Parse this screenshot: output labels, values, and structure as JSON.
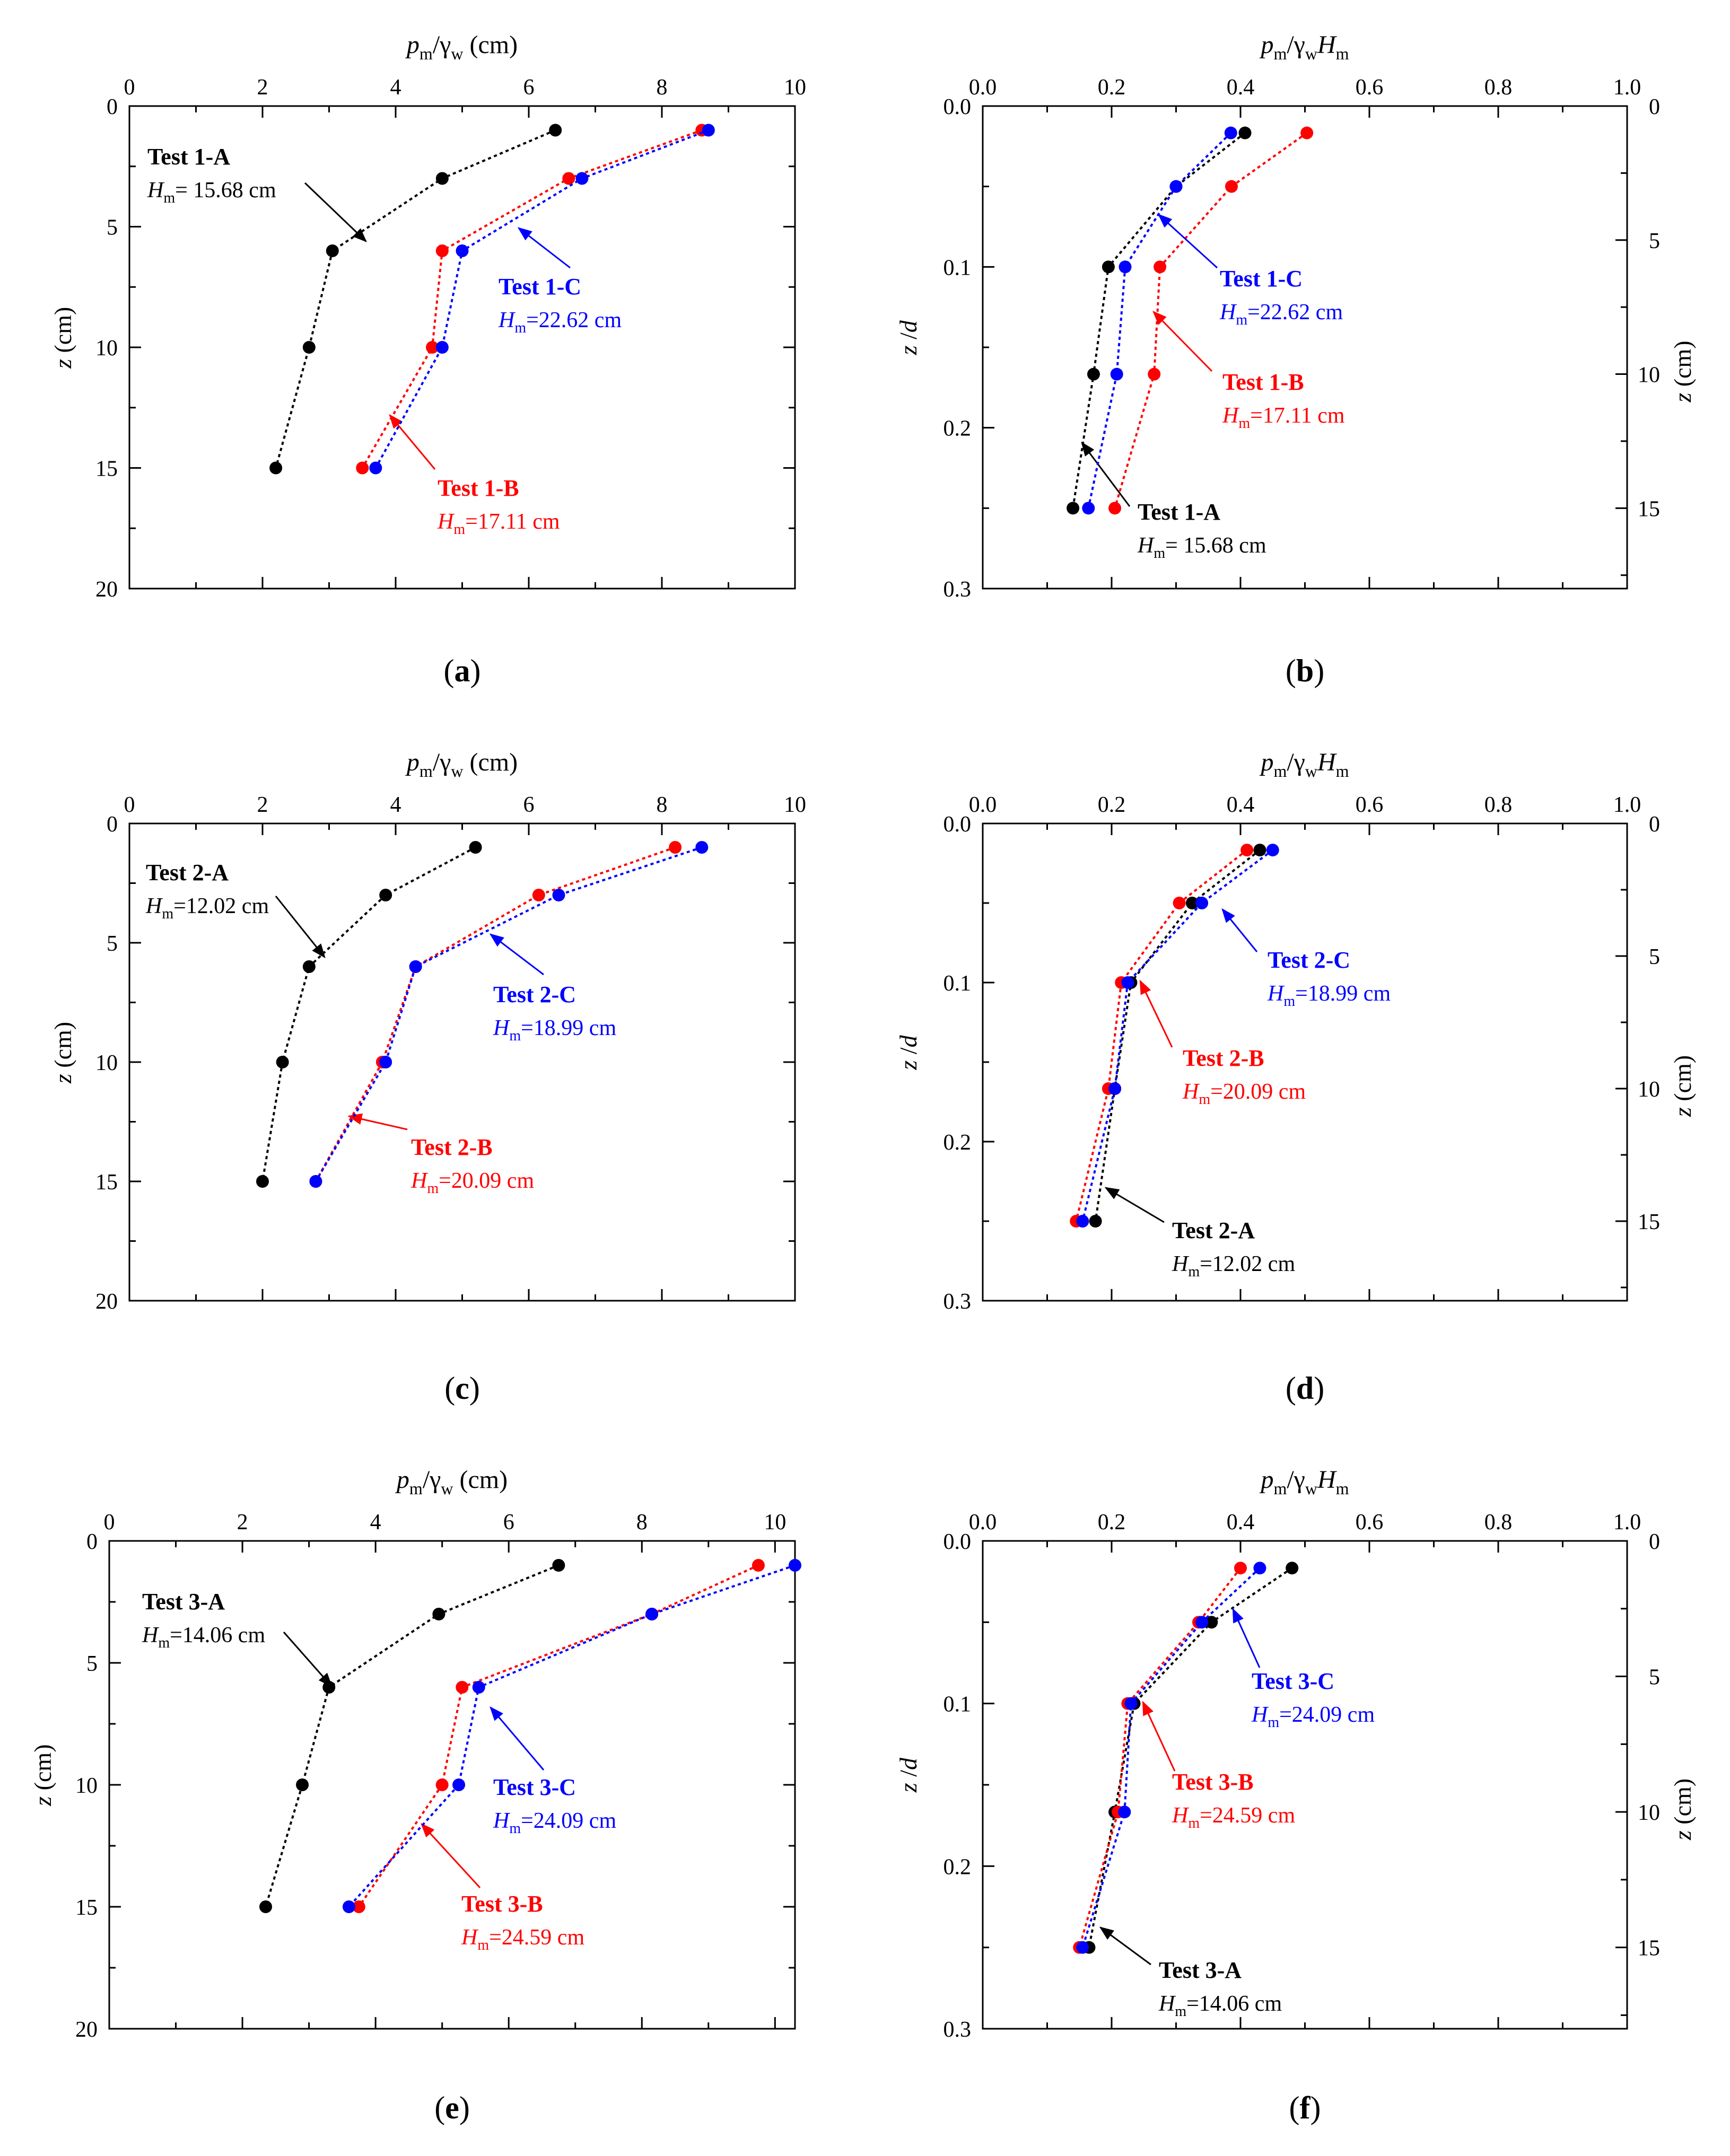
{
  "figure": {
    "colors": {
      "A": "#000000",
      "B": "#ff0000",
      "C": "#0000ff"
    }
  },
  "chart_data": [
    {
      "panel": "a",
      "type": "line",
      "x_position": "top",
      "xlabel": {
        "main": "p",
        "sub": "m",
        "rest": "/γ",
        "sub2": "w",
        "tail": " (cm)"
      },
      "ylabel": {
        "main": "z",
        "rest": " (cm)"
      },
      "xlim": [
        0,
        10
      ],
      "ylim": [
        0,
        20
      ],
      "xticks": [
        0,
        2,
        4,
        6,
        8,
        10
      ],
      "yticks": [
        0,
        5,
        10,
        15,
        20
      ],
      "caption": {
        "open": "(",
        "letter": "a",
        "close": ")"
      },
      "series": [
        {
          "key": "A",
          "name": "Test 1-A",
          "hm": "= 15.68 cm",
          "x": [
            6.4,
            4.7,
            3.05,
            2.7,
            2.2
          ],
          "y": [
            1,
            3,
            6,
            10,
            15
          ]
        },
        {
          "key": "B",
          "name": "Test 1-B",
          "hm": "=17.11 cm",
          "x": [
            8.6,
            6.6,
            4.7,
            4.55,
            3.5
          ],
          "y": [
            1,
            3,
            6,
            10,
            15
          ]
        },
        {
          "key": "C",
          "name": "Test 1-C",
          "hm": "=22.62 cm",
          "x": [
            8.7,
            6.8,
            5.0,
            4.7,
            3.7
          ],
          "y": [
            1,
            3,
            6,
            10,
            15
          ]
        }
      ]
    },
    {
      "panel": "b",
      "type": "line",
      "x_position": "top",
      "secondary_y": true,
      "xlabel": {
        "main": "p",
        "sub": "m",
        "rest": "/γ",
        "sub2": "w",
        "main2": "H",
        "sub3": "m"
      },
      "ylabel": {
        "main": "z",
        "rest": " /",
        "main2": "d"
      },
      "y2label": {
        "main": "z",
        "rest": " (cm)"
      },
      "xlim": [
        0,
        1.0
      ],
      "ylim": [
        0,
        0.3
      ],
      "xticks": [
        "0.0",
        "0.2",
        "0.4",
        "0.6",
        "0.8",
        "1.0"
      ],
      "yticks": [
        "0.0",
        "0.1",
        "0.2",
        "0.3"
      ],
      "y2lim": [
        0,
        18
      ],
      "y2ticks": [
        "0",
        "5",
        "10",
        "15"
      ],
      "caption": {
        "open": "(",
        "letter": "b",
        "close": ")"
      },
      "series": [
        {
          "key": "A",
          "name": "Test 1-A",
          "hm": "= 15.68 cm",
          "x": [
            0.407,
            0.3,
            0.195,
            0.172,
            0.14
          ],
          "y": [
            0.0167,
            0.05,
            0.1,
            0.1667,
            0.25
          ]
        },
        {
          "key": "B",
          "name": "Test 1-B",
          "hm": "=17.11 cm",
          "x": [
            0.503,
            0.386,
            0.275,
            0.266,
            0.205
          ],
          "y": [
            0.0167,
            0.05,
            0.1,
            0.1667,
            0.25
          ]
        },
        {
          "key": "C",
          "name": "Test 1-C",
          "hm": "=22.62 cm",
          "x": [
            0.385,
            0.3,
            0.221,
            0.208,
            0.164
          ],
          "y": [
            0.0167,
            0.05,
            0.1,
            0.1667,
            0.25
          ]
        }
      ]
    },
    {
      "panel": "c",
      "type": "line",
      "x_position": "top",
      "xlabel": {
        "main": "p",
        "sub": "m",
        "rest": "/γ",
        "sub2": "w",
        "tail": " (cm)"
      },
      "ylabel": {
        "main": "z",
        "rest": " (cm)"
      },
      "xlim": [
        0,
        10
      ],
      "ylim": [
        0,
        20
      ],
      "xticks": [
        0,
        2,
        4,
        6,
        8,
        10
      ],
      "yticks": [
        0,
        5,
        10,
        15,
        20
      ],
      "caption": {
        "open": "(",
        "letter": "c",
        "close": ")"
      },
      "series": [
        {
          "key": "A",
          "name": "Test 2-A",
          "hm": "=12.02 cm",
          "x": [
            5.2,
            3.85,
            2.7,
            2.3,
            2.0
          ],
          "y": [
            1,
            3,
            6,
            10,
            15
          ]
        },
        {
          "key": "B",
          "name": "Test 2-B",
          "hm": "=20.09 cm",
          "x": [
            8.2,
            6.15,
            4.3,
            3.8,
            2.8
          ],
          "y": [
            1,
            3,
            6,
            10,
            15
          ]
        },
        {
          "key": "C",
          "name": "Test 2-C",
          "hm": "=18.99 cm",
          "x": [
            8.6,
            6.45,
            4.3,
            3.85,
            2.8
          ],
          "y": [
            1,
            3,
            6,
            10,
            15
          ]
        }
      ]
    },
    {
      "panel": "d",
      "type": "line",
      "x_position": "top",
      "secondary_y": true,
      "xlabel": {
        "main": "p",
        "sub": "m",
        "rest": "/γ",
        "sub2": "w",
        "main2": "H",
        "sub3": "m"
      },
      "ylabel": {
        "main": "z",
        "rest": " /",
        "main2": "d"
      },
      "y2label": {
        "main": "z",
        "rest": " (cm)"
      },
      "xlim": [
        0,
        1.0
      ],
      "ylim": [
        0,
        0.3
      ],
      "xticks": [
        "0.0",
        "0.2",
        "0.4",
        "0.6",
        "0.8",
        "1.0"
      ],
      "yticks": [
        "0.0",
        "0.1",
        "0.2",
        "0.3"
      ],
      "y2lim": [
        0,
        18
      ],
      "y2ticks": [
        "0",
        "5",
        "10",
        "15"
      ],
      "caption": {
        "open": "(",
        "letter": "d",
        "close": ")"
      },
      "series": [
        {
          "key": "A",
          "name": "Test 2-A",
          "hm": "=12.02 cm",
          "x": [
            0.43,
            0.325,
            0.23,
            0.205,
            0.175
          ],
          "y": [
            0.0167,
            0.05,
            0.1,
            0.1667,
            0.25
          ]
        },
        {
          "key": "B",
          "name": "Test 2-B",
          "hm": "=20.09 cm",
          "x": [
            0.41,
            0.305,
            0.215,
            0.195,
            0.145
          ],
          "y": [
            0.0167,
            0.05,
            0.1,
            0.1667,
            0.25
          ]
        },
        {
          "key": "C",
          "name": "Test 2-C",
          "hm": "=18.99 cm",
          "x": [
            0.45,
            0.34,
            0.225,
            0.205,
            0.155
          ],
          "y": [
            0.0167,
            0.05,
            0.1,
            0.1667,
            0.25
          ]
        }
      ]
    },
    {
      "panel": "e",
      "type": "line",
      "x_position": "top",
      "xlabel": {
        "main": "p",
        "sub": "m",
        "rest": "/γ",
        "sub2": "w",
        "tail": " (cm)"
      },
      "ylabel": {
        "main": "z",
        "rest": " (cm)"
      },
      "xlim": [
        0,
        10.3
      ],
      "ylim": [
        0,
        20
      ],
      "xticks": [
        0,
        2,
        4,
        6,
        8,
        10
      ],
      "yticks": [
        0,
        5,
        10,
        15,
        20
      ],
      "caption": {
        "open": "(",
        "letter": "e",
        "close": ")"
      },
      "series": [
        {
          "key": "A",
          "name": "Test 3-A",
          "hm": "=14.06 cm",
          "x": [
            6.75,
            4.95,
            3.3,
            2.9,
            2.35
          ],
          "y": [
            1,
            3,
            6,
            10,
            15
          ]
        },
        {
          "key": "B",
          "name": "Test 3-B",
          "hm": "=24.59 cm",
          "x": [
            9.75,
            8.15,
            5.3,
            5.0,
            3.75
          ],
          "y": [
            1,
            3,
            6,
            10,
            15
          ]
        },
        {
          "key": "C",
          "name": "Test 3-C",
          "hm": "=24.09 cm",
          "x": [
            10.3,
            8.15,
            5.55,
            5.25,
            3.6
          ],
          "y": [
            1,
            3,
            6,
            10,
            15
          ]
        }
      ]
    },
    {
      "panel": "f",
      "type": "line",
      "x_position": "top",
      "secondary_y": true,
      "xlabel": {
        "main": "p",
        "sub": "m",
        "rest": "/γ",
        "sub2": "w",
        "main2": "H",
        "sub3": "m"
      },
      "ylabel": {
        "main": "z",
        "rest": " /",
        "main2": "d"
      },
      "y2label": {
        "main": "z",
        "rest": " (cm)"
      },
      "xlim": [
        0,
        1.0
      ],
      "ylim": [
        0,
        0.3
      ],
      "xticks": [
        "0.0",
        "0.2",
        "0.4",
        "0.6",
        "0.8",
        "1.0"
      ],
      "yticks": [
        "0.0",
        "0.1",
        "0.2",
        "0.3"
      ],
      "y2lim": [
        0,
        18
      ],
      "y2ticks": [
        "0",
        "5",
        "10",
        "15"
      ],
      "caption": {
        "open": "(",
        "letter": "f",
        "close": ")"
      },
      "series": [
        {
          "key": "A",
          "name": "Test 3-A",
          "hm": "=14.06 cm",
          "x": [
            0.48,
            0.355,
            0.235,
            0.205,
            0.165
          ],
          "y": [
            0.0167,
            0.05,
            0.1,
            0.1667,
            0.25
          ]
        },
        {
          "key": "B",
          "name": "Test 3-B",
          "hm": "=24.59 cm",
          "x": [
            0.4,
            0.335,
            0.225,
            0.21,
            0.15
          ],
          "y": [
            0.0167,
            0.05,
            0.1,
            0.1667,
            0.25
          ]
        },
        {
          "key": "C",
          "name": "Test 3-C",
          "hm": "=24.09 cm",
          "x": [
            0.43,
            0.34,
            0.23,
            0.22,
            0.155
          ],
          "y": [
            0.0167,
            0.05,
            0.1,
            0.1667,
            0.25
          ]
        }
      ]
    }
  ]
}
